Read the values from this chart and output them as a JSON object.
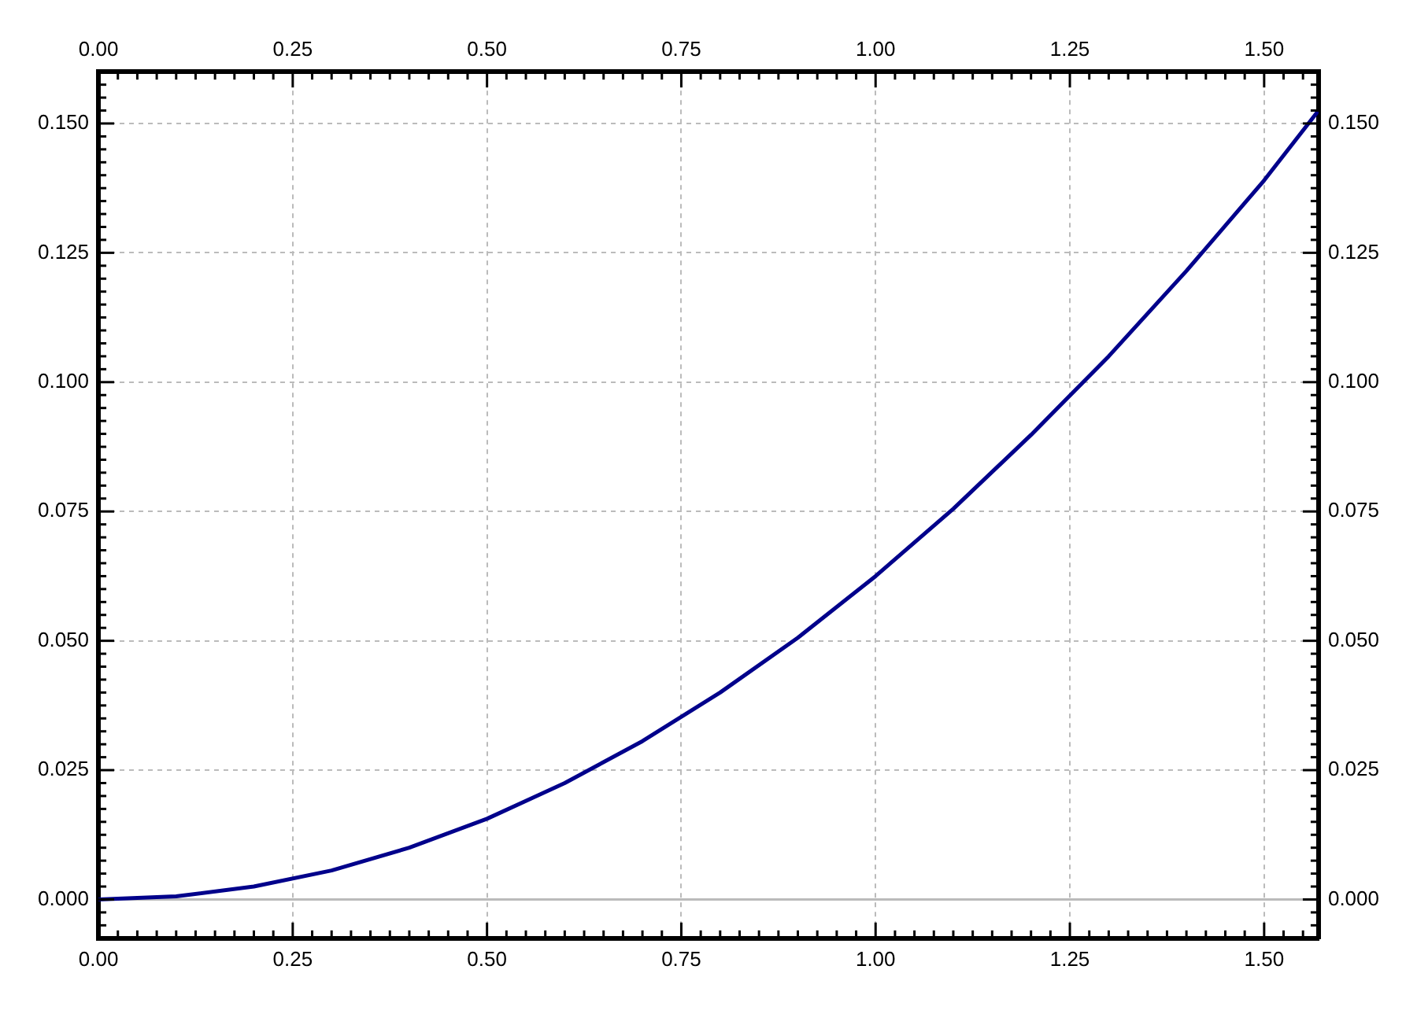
{
  "chart_data": {
    "type": "line",
    "x": [
      0,
      0.1,
      0.2,
      0.3,
      0.4,
      0.5,
      0.6,
      0.7,
      0.8,
      0.9,
      1.0,
      1.1,
      1.2,
      1.3,
      1.4,
      1.5,
      1.57
    ],
    "series": [
      {
        "color": "#00008b",
        "values": [
          0,
          0.0006,
          0.0025,
          0.0056,
          0.01,
          0.0156,
          0.0225,
          0.0306,
          0.04,
          0.0506,
          0.0625,
          0.0755,
          0.0898,
          0.105,
          0.1215,
          0.139,
          0.1525
        ]
      }
    ],
    "xlim": [
      0,
      1.57
    ],
    "xticks": [
      {
        "value": 0,
        "label": "0.00"
      },
      0.25,
      {
        "value": 0.5,
        "label": "0.50"
      },
      0.75,
      {
        "value": 1,
        "label": "1.00"
      },
      1.25,
      {
        "value": 1.5,
        "label": "1.50"
      }
    ],
    "x2lim": [
      0,
      1.57
    ],
    "x2ticks": [
      {
        "value": 0,
        "label": "0.00"
      },
      0.25,
      {
        "value": 0.5,
        "label": "0.50"
      },
      0.75,
      {
        "value": 1,
        "label": "1.00"
      },
      1.25,
      {
        "value": 1.5,
        "label": "1.50"
      }
    ],
    "ylim": [
      -0.0075,
      0.16
    ],
    "yticks": [
      {
        "value": 0,
        "label": "0.000"
      },
      0.025,
      {
        "value": 0.05,
        "label": "0.050"
      },
      0.075,
      {
        "value": 0.1,
        "label": "0.100"
      },
      0.125,
      {
        "value": 0.15,
        "label": "0.150"
      }
    ],
    "y2lim": [
      -0.0075,
      0.16
    ],
    "y2ticks": [
      {
        "value": 0,
        "label": "0.000"
      },
      0.025,
      {
        "value": 0.05,
        "label": "0.050"
      },
      0.075,
      {
        "value": 0.1,
        "label": "0.100"
      },
      0.125,
      {
        "value": 0.15,
        "label": "0.150"
      }
    ],
    "grid": true,
    "line_style": "solid",
    "ref_lines": [
      {
        "axis": "y",
        "value": 0,
        "color": "#bbbbbb"
      }
    ]
  }
}
